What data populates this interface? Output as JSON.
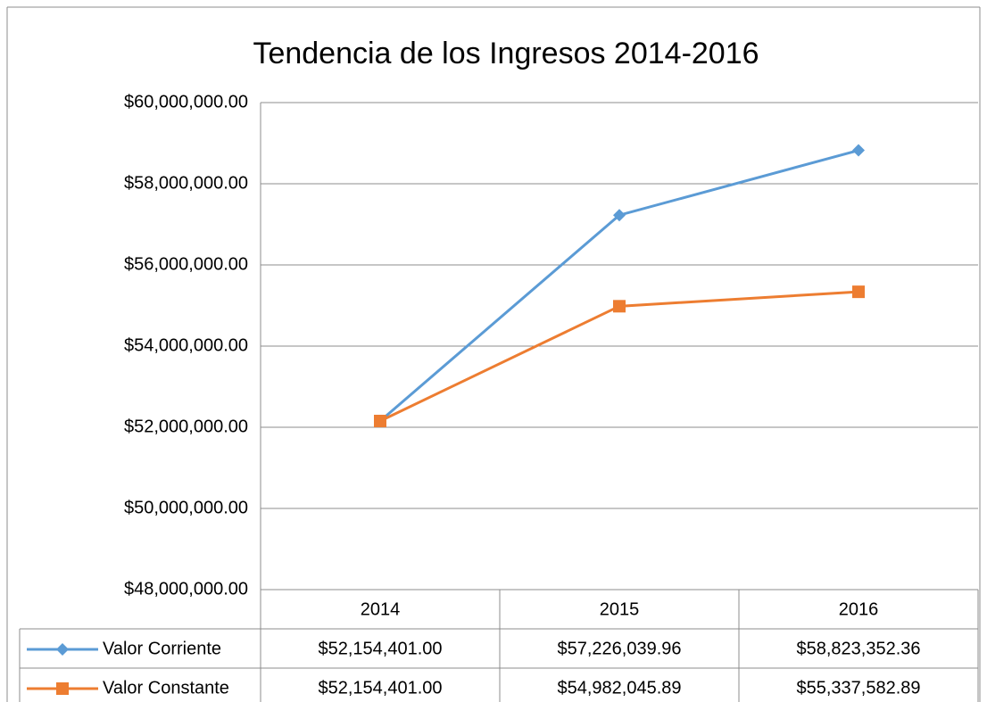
{
  "chart_data": {
    "type": "line",
    "title": "Tendencia de los Ingresos 2014-2016",
    "categories": [
      "2014",
      "2015",
      "2016"
    ],
    "series": [
      {
        "name": "Valor Corriente",
        "color": "#5b9bd5",
        "marker": "diamond",
        "values": [
          52154401.0,
          57226039.96,
          58823352.36
        ],
        "value_labels": [
          "$52,154,401.00",
          "$57,226,039.96",
          "$58,823,352.36"
        ]
      },
      {
        "name": "Valor Constante",
        "color": "#ed7d31",
        "marker": "square",
        "values": [
          52154401.0,
          54982045.89,
          55337582.89
        ],
        "value_labels": [
          "$52,154,401.00",
          "$54,982,045.89",
          "$55,337,582.89"
        ]
      }
    ],
    "ylim": [
      48000000,
      60000000
    ],
    "yticks": [
      {
        "value": 48000000,
        "label": "$48,000,000.00"
      },
      {
        "value": 50000000,
        "label": "$50,000,000.00"
      },
      {
        "value": 52000000,
        "label": "$52,000,000.00"
      },
      {
        "value": 54000000,
        "label": "$54,000,000.00"
      },
      {
        "value": 56000000,
        "label": "$56,000,000.00"
      },
      {
        "value": 58000000,
        "label": "$58,000,000.00"
      },
      {
        "value": 60000000,
        "label": "$60,000,000.00"
      }
    ],
    "grid": true,
    "data_table": true
  }
}
